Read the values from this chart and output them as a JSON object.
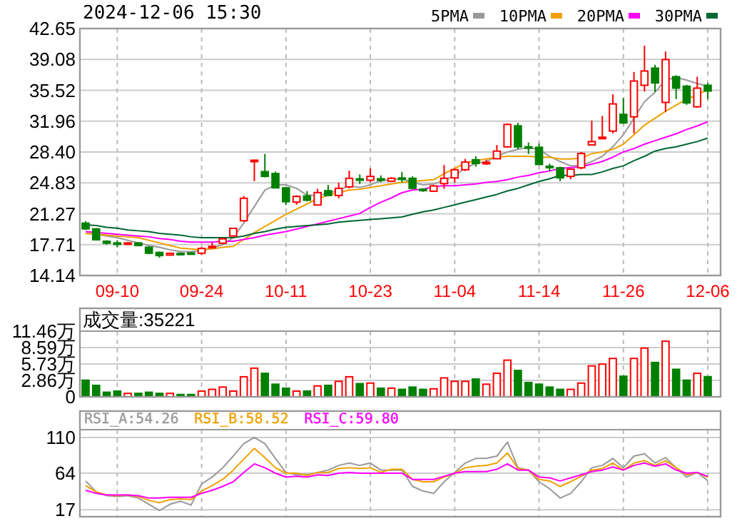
{
  "chart_data": [
    {
      "type": "candlestick",
      "title": "2024-12-06 15:30",
      "legend": "top right",
      "grid": true,
      "categories": [
        null,
        null,
        null,
        "09-10",
        null,
        null,
        null,
        null,
        null,
        null,
        null,
        "09-24",
        null,
        null,
        null,
        null,
        null,
        null,
        null,
        "10-11",
        null,
        null,
        null,
        null,
        null,
        null,
        null,
        "10-23",
        null,
        null,
        null,
        null,
        null,
        null,
        null,
        "11-04",
        null,
        null,
        null,
        null,
        null,
        null,
        null,
        "11-14",
        null,
        null,
        null,
        null,
        null,
        null,
        null,
        "11-26",
        null,
        null,
        null,
        null,
        null,
        null,
        null,
        "12-06"
      ],
      "ylim": [
        14.14,
        42.65
      ],
      "yticks": [
        14.14,
        17.71,
        21.27,
        24.83,
        {
          "value": 28.4,
          "label": "28.40"
        },
        31.96,
        35.52,
        39.08,
        42.65
      ],
      "ohlc": [
        [
          20.18,
          20.4,
          19.4,
          19.52
        ],
        [
          19.52,
          19.6,
          18.2,
          18.26
        ],
        [
          18.09,
          18.2,
          17.7,
          17.87
        ],
        [
          17.9,
          18.2,
          17.4,
          17.8
        ],
        [
          17.8,
          18.0,
          17.7,
          17.9
        ],
        [
          17.9,
          17.95,
          17.55,
          17.6
        ],
        [
          17.4,
          17.5,
          16.6,
          16.71
        ],
        [
          16.8,
          16.9,
          16.2,
          16.44
        ],
        [
          16.5,
          16.8,
          16.4,
          16.7
        ],
        [
          16.7,
          16.8,
          16.5,
          16.6
        ],
        [
          16.75,
          16.85,
          16.6,
          16.7
        ],
        [
          16.71,
          17.43,
          16.55,
          17.26
        ],
        [
          17.4,
          17.93,
          17.3,
          17.5
        ],
        [
          17.87,
          18.5,
          17.8,
          18.37
        ],
        [
          18.7,
          19.6,
          18.7,
          19.58
        ],
        [
          20.46,
          23.32,
          20.35,
          23.05
        ],
        [
          27.4,
          27.45,
          25.03,
          27.45
        ],
        [
          26.13,
          28.17,
          25.47,
          25.58
        ],
        [
          25.91,
          26.13,
          24.2,
          24.26
        ],
        [
          24.26,
          24.3,
          22.28,
          22.66
        ],
        [
          22.61,
          23.4,
          22.3,
          23.27
        ],
        [
          23.32,
          23.87,
          22.7,
          22.83
        ],
        [
          22.28,
          24.15,
          22.2,
          23.71
        ],
        [
          23.93,
          24.59,
          23.3,
          23.38
        ],
        [
          23.38,
          24.86,
          23.05,
          24.2
        ],
        [
          24.37,
          26.24,
          24.2,
          25.36
        ],
        [
          25.3,
          25.8,
          24.7,
          25.2
        ],
        [
          25.14,
          26.5,
          24.9,
          25.58
        ],
        [
          25.3,
          25.7,
          24.9,
          25.2
        ],
        [
          25.03,
          25.5,
          25.0,
          25.36
        ],
        [
          25.4,
          26.1,
          24.9,
          25.35
        ],
        [
          25.36,
          25.6,
          24.1,
          24.2
        ],
        [
          24.1,
          24.2,
          23.8,
          24.0
        ],
        [
          23.87,
          24.6,
          23.8,
          24.48
        ],
        [
          24.75,
          26.9,
          24.15,
          25.36
        ],
        [
          25.41,
          26.5,
          24.86,
          26.35
        ],
        [
          26.35,
          27.6,
          26.2,
          27.23
        ],
        [
          27.5,
          27.9,
          26.7,
          27.07
        ],
        [
          27.1,
          27.5,
          26.9,
          27.2
        ],
        [
          27.62,
          29.21,
          27.6,
          28.5
        ],
        [
          28.99,
          31.7,
          28.9,
          31.58
        ],
        [
          31.42,
          31.75,
          28.72,
          28.99
        ],
        [
          29.0,
          29.5,
          28.17,
          28.9
        ],
        [
          28.94,
          29.38,
          26.9,
          26.96
        ],
        [
          26.75,
          27.05,
          26.2,
          26.6
        ],
        [
          26.57,
          26.7,
          25.03,
          25.41
        ],
        [
          25.58,
          26.5,
          25.25,
          26.41
        ],
        [
          26.57,
          28.4,
          26.4,
          28.22
        ],
        [
          29.21,
          32.02,
          29.2,
          29.6
        ],
        [
          30.0,
          32.57,
          29.9,
          30.1
        ],
        [
          30.81,
          35.05,
          30.54,
          33.95
        ],
        [
          32.74,
          34.61,
          31.64,
          31.75
        ],
        [
          32.46,
          37.64,
          30.54,
          36.59
        ],
        [
          36.1,
          40.67,
          35.38,
          37.75
        ],
        [
          38.08,
          38.47,
          35.33,
          36.37
        ],
        [
          34.12,
          40.0,
          33.01,
          39.07
        ],
        [
          37.09,
          37.25,
          34.5,
          35.77
        ],
        [
          35.99,
          36.15,
          33.84,
          34.06
        ],
        [
          33.62,
          37.09,
          33.5,
          35.77
        ],
        [
          36.1,
          36.37,
          34.5,
          35.44
        ]
      ],
      "colors": [
        "#008000",
        "#008000",
        "#008000",
        "#008000",
        "#ff0000",
        "#008000",
        "#008000",
        "#008000",
        "#ff0000",
        "#008000",
        "#008000",
        "#ff0000",
        "#ff0000",
        "#ff0000",
        "#ff0000",
        "#ff0000",
        "#ff0000",
        "#008000",
        "#008000",
        "#008000",
        "#ff0000",
        "#008000",
        "#ff0000",
        "#008000",
        "#ff0000",
        "#ff0000",
        "#008000",
        "#ff0000",
        "#008000",
        "#ff0000",
        "#008000",
        "#008000",
        "#008000",
        "#ff0000",
        "#ff0000",
        "#ff0000",
        "#ff0000",
        "#008000",
        "#ff0000",
        "#ff0000",
        "#ff0000",
        "#008000",
        "#008000",
        "#008000",
        "#008000",
        "#008000",
        "#ff0000",
        "#ff0000",
        "#ff0000",
        "#ff0000",
        "#ff0000",
        "#008000",
        "#ff0000",
        "#ff0000",
        "#008000",
        "#ff0000",
        "#008000",
        "#008000",
        "#ff0000",
        "#008000"
      ],
      "series": [
        {
          "name": "5PMA",
          "type": "line",
          "color": "#999999",
          "values": [
            19.0,
            18.9,
            18.7,
            18.5,
            18.2,
            17.9,
            17.6,
            17.4,
            17.1,
            16.9,
            16.9,
            17.0,
            17.3,
            17.7,
            18.5,
            20.2,
            22.1,
            24.0,
            24.6,
            24.6,
            24.2,
            23.4,
            23.4,
            23.6,
            24.0,
            24.5,
            24.3,
            24.6,
            25.1,
            25.2,
            25.3,
            24.9,
            24.6,
            24.7,
            25.1,
            25.7,
            26.5,
            27.1,
            27.3,
            27.9,
            28.4,
            28.7,
            28.9,
            28.7,
            27.9,
            27.3,
            26.8,
            26.8,
            27.3,
            27.9,
            29.0,
            30.4,
            32.3,
            34.2,
            35.3,
            36.7,
            37.0,
            36.7,
            36.3,
            36.0
          ]
        },
        {
          "name": "10PMA",
          "type": "line",
          "color": "#f0a000",
          "values": [
            19.0,
            18.9,
            18.8,
            18.7,
            18.6,
            18.5,
            18.2,
            17.9,
            17.6,
            17.3,
            17.2,
            17.1,
            17.2,
            17.4,
            17.5,
            18.3,
            19.1,
            19.8,
            20.5,
            21.2,
            21.8,
            22.4,
            23.0,
            23.4,
            23.7,
            24.0,
            24.1,
            24.3,
            24.5,
            24.7,
            24.9,
            25.0,
            25.1,
            25.2,
            25.9,
            26.5,
            27.1,
            27.4,
            27.6,
            27.8,
            27.9,
            27.9,
            27.9,
            27.8,
            27.8,
            27.6,
            27.6,
            27.7,
            28.2,
            28.4,
            28.7,
            29.3,
            30.4,
            31.5,
            32.3,
            33.1,
            33.8,
            34.5,
            35.0,
            35.6
          ]
        },
        {
          "name": "20PMA",
          "type": "line",
          "color": "#ff00ff",
          "values": [
            19.2,
            19.1,
            19.0,
            18.9,
            18.8,
            18.7,
            18.6,
            18.4,
            18.3,
            18.1,
            18.0,
            18.0,
            18.0,
            18.1,
            18.1,
            18.3,
            18.5,
            18.8,
            19.0,
            19.2,
            19.5,
            19.8,
            20.1,
            20.4,
            20.7,
            21.0,
            21.3,
            22.0,
            22.6,
            23.1,
            23.7,
            24.0,
            24.1,
            24.4,
            24.5,
            24.5,
            24.6,
            24.7,
            24.9,
            25.0,
            25.2,
            25.5,
            25.7,
            26.0,
            26.2,
            26.5,
            26.6,
            26.7,
            27.0,
            27.3,
            27.8,
            28.4,
            28.8,
            29.3,
            29.7,
            30.1,
            30.5,
            31.0,
            31.4,
            31.9
          ]
        },
        {
          "name": "30PMA",
          "type": "line",
          "color": "#006633",
          "values": [
            20.0,
            19.9,
            19.7,
            19.6,
            19.4,
            19.3,
            19.2,
            19.0,
            18.9,
            18.8,
            18.6,
            18.5,
            18.5,
            18.5,
            18.5,
            18.7,
            19.0,
            19.2,
            19.5,
            19.7,
            19.8,
            19.9,
            20.0,
            20.1,
            20.3,
            20.4,
            20.5,
            20.6,
            20.7,
            20.8,
            20.9,
            21.2,
            21.5,
            21.7,
            22.0,
            22.3,
            22.6,
            22.9,
            23.2,
            23.5,
            23.9,
            24.2,
            24.6,
            25.0,
            25.3,
            25.7,
            25.7,
            25.8,
            25.8,
            26.1,
            26.5,
            26.8,
            27.4,
            27.9,
            28.5,
            28.8,
            29.0,
            29.3,
            29.6,
            30.0
          ]
        }
      ]
    },
    {
      "type": "bar",
      "title": "成交量:35221",
      "grid": true,
      "categories": [
        null,
        null,
        null,
        null,
        null,
        null,
        null,
        null,
        null,
        null,
        null,
        null,
        null,
        null,
        null,
        null,
        null,
        null,
        null,
        null,
        null,
        null,
        null,
        null,
        null,
        null,
        null,
        null,
        null,
        null,
        null,
        null,
        null,
        null,
        null,
        null,
        null,
        null,
        null,
        null,
        null,
        null,
        null,
        null,
        null,
        null,
        null,
        null,
        null,
        null,
        null,
        null,
        null,
        null,
        null,
        null,
        null,
        null,
        null,
        null
      ],
      "ylim": [
        0,
        11.46
      ],
      "yticks": [
        0,
        {
          "value": 2.86,
          "label": "2.86万"
        },
        {
          "value": 5.73,
          "label": "5.73万"
        },
        {
          "value": 8.59,
          "label": "8.59万"
        },
        {
          "value": 11.46,
          "label": "11.46万"
        }
      ],
      "values": [
        2.9,
        2.0,
        0.8,
        1.0,
        0.6,
        0.6,
        0.8,
        0.6,
        0.6,
        0.4,
        0.4,
        1.0,
        1.3,
        1.7,
        1.0,
        3.5,
        5.0,
        4.1,
        2.2,
        1.5,
        1.0,
        1.0,
        1.9,
        2.0,
        2.7,
        3.5,
        2.3,
        2.4,
        1.5,
        1.5,
        1.3,
        1.7,
        1.3,
        1.4,
        3.3,
        2.7,
        2.7,
        3.1,
        2.2,
        4.1,
        6.4,
        4.6,
        2.5,
        2.2,
        1.7,
        1.3,
        1.3,
        2.4,
        5.4,
        5.7,
        6.7,
        3.6,
        6.7,
        8.5,
        6.0,
        9.7,
        4.8,
        2.9,
        4.1,
        3.5221
      ],
      "colors": [
        "#008000",
        "#008000",
        "#008000",
        "#008000",
        "#ff0000",
        "#008000",
        "#008000",
        "#008000",
        "#ff0000",
        "#008000",
        "#008000",
        "#ff0000",
        "#ff0000",
        "#ff0000",
        "#ff0000",
        "#ff0000",
        "#ff0000",
        "#008000",
        "#008000",
        "#008000",
        "#ff0000",
        "#008000",
        "#ff0000",
        "#008000",
        "#ff0000",
        "#ff0000",
        "#008000",
        "#ff0000",
        "#008000",
        "#ff0000",
        "#008000",
        "#008000",
        "#008000",
        "#ff0000",
        "#ff0000",
        "#ff0000",
        "#ff0000",
        "#008000",
        "#ff0000",
        "#ff0000",
        "#ff0000",
        "#008000",
        "#008000",
        "#008000",
        "#008000",
        "#008000",
        "#ff0000",
        "#ff0000",
        "#ff0000",
        "#ff0000",
        "#ff0000",
        "#008000",
        "#ff0000",
        "#ff0000",
        "#008000",
        "#ff0000",
        "#008000",
        "#008000",
        "#ff0000",
        "#008000"
      ]
    },
    {
      "type": "line",
      "grid": true,
      "legend": "top left",
      "categories": [
        null,
        null,
        null,
        null,
        null,
        null,
        null,
        null,
        null,
        null,
        null,
        null,
        null,
        null,
        null,
        null,
        null,
        null,
        null,
        null,
        null,
        null,
        null,
        null,
        null,
        null,
        null,
        null,
        null,
        null,
        null,
        null,
        null,
        null,
        null,
        null,
        null,
        null,
        null,
        null,
        null,
        null,
        null,
        null,
        null,
        null,
        null,
        null,
        null,
        null,
        null,
        null,
        null,
        null,
        null,
        null,
        null,
        null,
        null,
        null
      ],
      "ylim": [
        8,
        120
      ],
      "yticks": [
        17,
        64,
        110
      ],
      "series": [
        {
          "name": "RSI_A:54.26",
          "color": "#999999",
          "values": [
            54,
            40,
            35,
            34,
            35,
            32,
            24,
            16,
            24,
            28,
            23,
            50,
            59,
            71,
            86,
            102,
            110,
            102,
            83,
            65,
            62,
            62,
            65,
            68,
            74,
            77,
            74,
            77,
            68,
            68,
            68,
            47,
            41,
            38,
            53,
            65,
            77,
            83,
            83,
            86,
            104,
            71,
            68,
            53,
            44,
            32,
            38,
            53,
            71,
            74,
            83,
            71,
            86,
            89,
            77,
            84,
            71,
            59,
            65,
            54.26
          ]
        },
        {
          "name": "RSI_B:58.52",
          "color": "#f0a000",
          "values": [
            48,
            40,
            36,
            35,
            36,
            34,
            29,
            26,
            30,
            31,
            30,
            41,
            48,
            56,
            68,
            82,
            96,
            84,
            71,
            64,
            64,
            61,
            65,
            65,
            70,
            71,
            70,
            71,
            65,
            69,
            69,
            56,
            53,
            53,
            59,
            64,
            71,
            73,
            74,
            77,
            90,
            70,
            68,
            56,
            54,
            47,
            53,
            60,
            68,
            70,
            77,
            68,
            77,
            80,
            74,
            80,
            71,
            62,
            65,
            58.52
          ]
        },
        {
          "name": "RSI_C:59.80",
          "color": "#ff00ff",
          "values": [
            42,
            38,
            36,
            36,
            36,
            35,
            32,
            32,
            33,
            33,
            33,
            38,
            42,
            47,
            53,
            65,
            76,
            71,
            64,
            59,
            60,
            59,
            62,
            61,
            64,
            65,
            64,
            64,
            64,
            64,
            64,
            56,
            56,
            56,
            60,
            64,
            66,
            66,
            66,
            69,
            76,
            68,
            68,
            59,
            58,
            54,
            58,
            62,
            66,
            68,
            72,
            68,
            74,
            77,
            73,
            76,
            68,
            64,
            65,
            59.8
          ]
        }
      ]
    }
  ]
}
